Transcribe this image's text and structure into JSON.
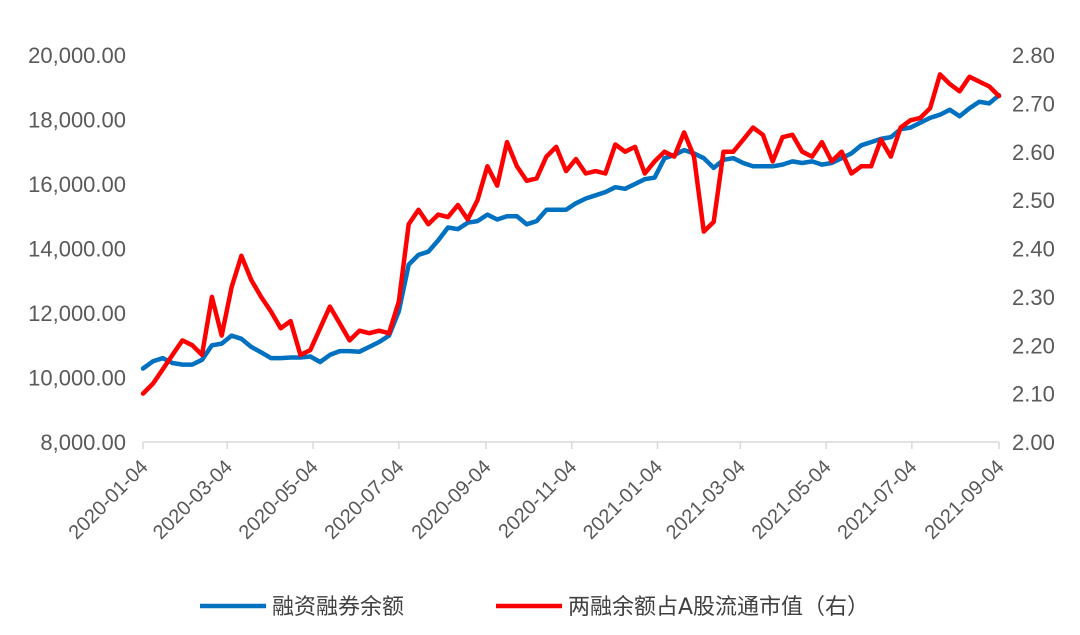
{
  "chart_data": {
    "type": "line",
    "title": "",
    "xlabel": "",
    "ylabel": "",
    "x_range": [
      "2020-01-04",
      "2021-09-04"
    ],
    "x_ticks": [
      "2020-01-04",
      "2020-03-04",
      "2020-05-04",
      "2020-07-04",
      "2020-09-04",
      "2020-11-04",
      "2021-01-04",
      "2021-03-04",
      "2021-05-04",
      "2021-07-04",
      "2021-09-04"
    ],
    "y_left": {
      "min": 8000,
      "max": 20000,
      "ticks": [
        "8,000.00",
        "10,000.00",
        "12,000.00",
        "14,000.00",
        "16,000.00",
        "18,000.00",
        "20,000.00"
      ]
    },
    "y_right": {
      "min": 2.0,
      "max": 2.8,
      "ticks": [
        "2.00",
        "2.10",
        "2.20",
        "2.30",
        "2.40",
        "2.50",
        "2.60",
        "2.70",
        "2.80"
      ]
    },
    "legend_position": "bottom",
    "series": [
      {
        "name": "融资融券余额",
        "axis": "left",
        "color": "#0070C0",
        "points": [
          [
            "2020-01-04",
            10280
          ],
          [
            "2020-01-11",
            10500
          ],
          [
            "2020-01-18",
            10600
          ],
          [
            "2020-01-25",
            10450
          ],
          [
            "2020-02-01",
            10400
          ],
          [
            "2020-02-08",
            10400
          ],
          [
            "2020-02-15",
            10550
          ],
          [
            "2020-02-22",
            11000
          ],
          [
            "2020-02-29",
            11050
          ],
          [
            "2020-03-07",
            11300
          ],
          [
            "2020-03-14",
            11200
          ],
          [
            "2020-03-21",
            10950
          ],
          [
            "2020-03-28",
            10780
          ],
          [
            "2020-04-04",
            10600
          ],
          [
            "2020-04-11",
            10600
          ],
          [
            "2020-04-18",
            10620
          ],
          [
            "2020-04-25",
            10620
          ],
          [
            "2020-05-02",
            10650
          ],
          [
            "2020-05-09",
            10480
          ],
          [
            "2020-05-16",
            10700
          ],
          [
            "2020-05-23",
            10820
          ],
          [
            "2020-05-30",
            10820
          ],
          [
            "2020-06-06",
            10800
          ],
          [
            "2020-06-13",
            10950
          ],
          [
            "2020-06-20",
            11100
          ],
          [
            "2020-06-27",
            11300
          ],
          [
            "2020-07-04",
            12050
          ],
          [
            "2020-07-11",
            13500
          ],
          [
            "2020-07-18",
            13800
          ],
          [
            "2020-07-25",
            13900
          ],
          [
            "2020-08-01",
            14250
          ],
          [
            "2020-08-08",
            14650
          ],
          [
            "2020-08-15",
            14600
          ],
          [
            "2020-08-22",
            14800
          ],
          [
            "2020-08-29",
            14850
          ],
          [
            "2020-09-05",
            15050
          ],
          [
            "2020-09-12",
            14900
          ],
          [
            "2020-09-19",
            15000
          ],
          [
            "2020-09-26",
            15000
          ],
          [
            "2020-10-03",
            14750
          ],
          [
            "2020-10-10",
            14850
          ],
          [
            "2020-10-17",
            15200
          ],
          [
            "2020-10-24",
            15200
          ],
          [
            "2020-10-31",
            15200
          ],
          [
            "2020-11-07",
            15400
          ],
          [
            "2020-11-14",
            15550
          ],
          [
            "2020-11-21",
            15650
          ],
          [
            "2020-11-28",
            15750
          ],
          [
            "2020-12-05",
            15900
          ],
          [
            "2020-12-12",
            15850
          ],
          [
            "2020-12-19",
            16000
          ],
          [
            "2020-12-26",
            16150
          ],
          [
            "2021-01-02",
            16200
          ],
          [
            "2021-01-09",
            16800
          ],
          [
            "2021-01-16",
            16900
          ],
          [
            "2021-01-23",
            17050
          ],
          [
            "2021-01-30",
            16950
          ],
          [
            "2021-02-06",
            16800
          ],
          [
            "2021-02-13",
            16500
          ],
          [
            "2021-02-20",
            16750
          ],
          [
            "2021-02-27",
            16800
          ],
          [
            "2021-03-06",
            16650
          ],
          [
            "2021-03-13",
            16550
          ],
          [
            "2021-03-20",
            16550
          ],
          [
            "2021-03-27",
            16550
          ],
          [
            "2021-04-03",
            16600
          ],
          [
            "2021-04-10",
            16700
          ],
          [
            "2021-04-17",
            16650
          ],
          [
            "2021-04-24",
            16700
          ],
          [
            "2021-05-01",
            16600
          ],
          [
            "2021-05-08",
            16650
          ],
          [
            "2021-05-15",
            16800
          ],
          [
            "2021-05-22",
            16950
          ],
          [
            "2021-05-29",
            17200
          ],
          [
            "2021-06-05",
            17300
          ],
          [
            "2021-06-12",
            17400
          ],
          [
            "2021-06-19",
            17450
          ],
          [
            "2021-06-26",
            17700
          ],
          [
            "2021-07-03",
            17750
          ],
          [
            "2021-07-10",
            17900
          ],
          [
            "2021-07-17",
            18050
          ],
          [
            "2021-07-24",
            18150
          ],
          [
            "2021-07-31",
            18300
          ],
          [
            "2021-08-07",
            18100
          ],
          [
            "2021-08-14",
            18350
          ],
          [
            "2021-08-21",
            18550
          ],
          [
            "2021-08-28",
            18500
          ],
          [
            "2021-09-04",
            18750
          ]
        ]
      },
      {
        "name": "两融余额占A股流通市值（右）",
        "axis": "right",
        "color": "#FF0000",
        "points": [
          [
            "2020-01-04",
            2.1
          ],
          [
            "2020-01-11",
            2.12
          ],
          [
            "2020-01-18",
            2.15
          ],
          [
            "2020-01-25",
            2.18
          ],
          [
            "2020-02-01",
            2.21
          ],
          [
            "2020-02-08",
            2.2
          ],
          [
            "2020-02-15",
            2.18
          ],
          [
            "2020-02-22",
            2.3
          ],
          [
            "2020-02-29",
            2.22
          ],
          [
            "2020-03-07",
            2.32
          ],
          [
            "2020-03-14",
            2.385
          ],
          [
            "2020-03-21",
            2.335
          ],
          [
            "2020-03-28",
            2.3
          ],
          [
            "2020-04-04",
            2.27
          ],
          [
            "2020-04-11",
            2.235
          ],
          [
            "2020-04-18",
            2.25
          ],
          [
            "2020-04-25",
            2.18
          ],
          [
            "2020-05-02",
            2.19
          ],
          [
            "2020-05-09",
            2.235
          ],
          [
            "2020-05-16",
            2.28
          ],
          [
            "2020-05-23",
            2.245
          ],
          [
            "2020-05-30",
            2.21
          ],
          [
            "2020-06-06",
            2.23
          ],
          [
            "2020-06-13",
            2.225
          ],
          [
            "2020-06-20",
            2.23
          ],
          [
            "2020-06-27",
            2.225
          ],
          [
            "2020-07-04",
            2.29
          ],
          [
            "2020-07-11",
            2.45
          ],
          [
            "2020-07-18",
            2.48
          ],
          [
            "2020-07-25",
            2.45
          ],
          [
            "2020-08-01",
            2.47
          ],
          [
            "2020-08-08",
            2.465
          ],
          [
            "2020-08-15",
            2.49
          ],
          [
            "2020-08-22",
            2.46
          ],
          [
            "2020-08-29",
            2.5
          ],
          [
            "2020-09-05",
            2.57
          ],
          [
            "2020-09-12",
            2.53
          ],
          [
            "2020-09-19",
            2.62
          ],
          [
            "2020-09-26",
            2.57
          ],
          [
            "2020-10-03",
            2.54
          ],
          [
            "2020-10-10",
            2.545
          ],
          [
            "2020-10-17",
            2.59
          ],
          [
            "2020-10-24",
            2.61
          ],
          [
            "2020-10-31",
            2.56
          ],
          [
            "2020-11-07",
            2.585
          ],
          [
            "2020-11-14",
            2.555
          ],
          [
            "2020-11-21",
            2.56
          ],
          [
            "2020-11-28",
            2.555
          ],
          [
            "2020-12-05",
            2.615
          ],
          [
            "2020-12-12",
            2.6
          ],
          [
            "2020-12-19",
            2.61
          ],
          [
            "2020-12-26",
            2.555
          ],
          [
            "2021-01-02",
            2.58
          ],
          [
            "2021-01-09",
            2.6
          ],
          [
            "2021-01-16",
            2.59
          ],
          [
            "2021-01-23",
            2.64
          ],
          [
            "2021-01-30",
            2.59
          ],
          [
            "2021-02-06",
            2.435
          ],
          [
            "2021-02-13",
            2.455
          ],
          [
            "2021-02-20",
            2.6
          ],
          [
            "2021-02-27",
            2.6
          ],
          [
            "2021-03-06",
            2.625
          ],
          [
            "2021-03-13",
            2.65
          ],
          [
            "2021-03-20",
            2.635
          ],
          [
            "2021-03-27",
            2.58
          ],
          [
            "2021-04-03",
            2.63
          ],
          [
            "2021-04-10",
            2.635
          ],
          [
            "2021-04-17",
            2.6
          ],
          [
            "2021-04-24",
            2.59
          ],
          [
            "2021-05-01",
            2.62
          ],
          [
            "2021-05-08",
            2.58
          ],
          [
            "2021-05-15",
            2.6
          ],
          [
            "2021-05-22",
            2.555
          ],
          [
            "2021-05-29",
            2.57
          ],
          [
            "2021-06-05",
            2.57
          ],
          [
            "2021-06-12",
            2.625
          ],
          [
            "2021-06-19",
            2.59
          ],
          [
            "2021-06-26",
            2.65
          ],
          [
            "2021-07-03",
            2.665
          ],
          [
            "2021-07-10",
            2.67
          ],
          [
            "2021-07-17",
            2.69
          ],
          [
            "2021-07-24",
            2.76
          ],
          [
            "2021-07-31",
            2.74
          ],
          [
            "2021-08-07",
            2.725
          ],
          [
            "2021-08-14",
            2.755
          ],
          [
            "2021-08-21",
            2.745
          ],
          [
            "2021-08-28",
            2.735
          ],
          [
            "2021-09-04",
            2.715
          ]
        ]
      }
    ]
  }
}
